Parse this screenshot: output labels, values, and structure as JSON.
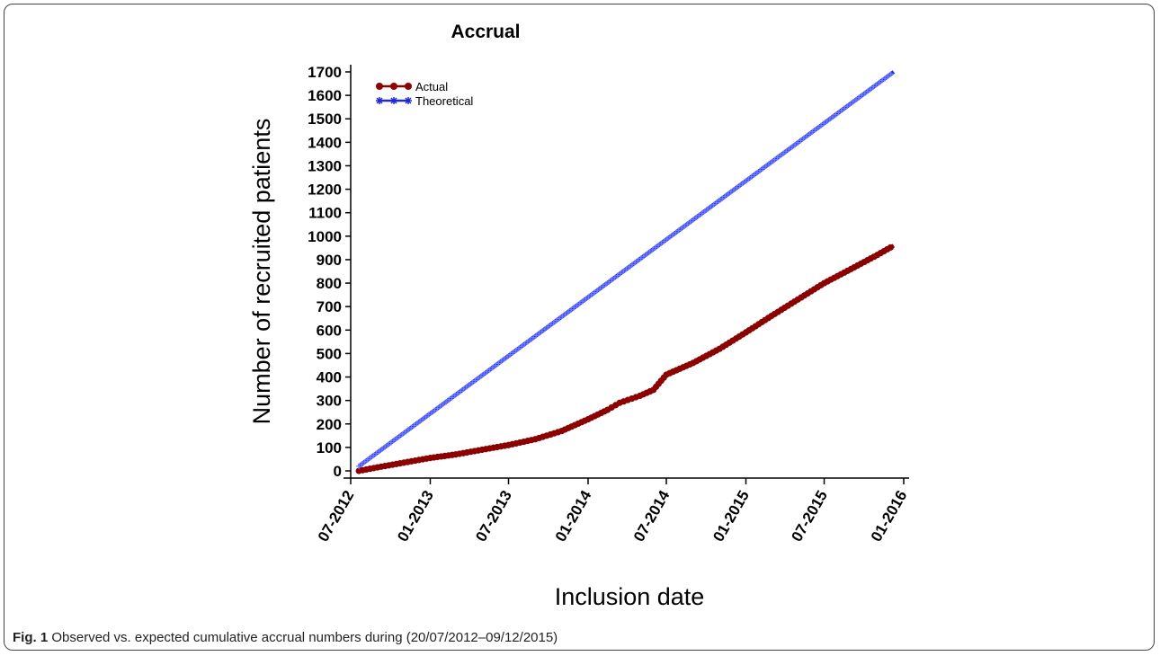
{
  "chart_data": {
    "type": "line",
    "title": "Accrual",
    "xlabel": "Inclusion date",
    "ylabel": "Number of recruited patients",
    "x_ticks": [
      "07-2012",
      "01-2013",
      "07-2013",
      "01-2014",
      "07-2014",
      "01-2015",
      "07-2015",
      "01-2016"
    ],
    "x_range": [
      "2012-07-01",
      "2016-01-01"
    ],
    "y_ticks": [
      0,
      100,
      200,
      300,
      400,
      500,
      600,
      700,
      800,
      900,
      1000,
      1100,
      1200,
      1300,
      1400,
      1500,
      1600,
      1700
    ],
    "ylim": [
      0,
      1700
    ],
    "legend_position": "top-left",
    "grid": false,
    "series": [
      {
        "name": "Actual",
        "color": "#8b0000",
        "marker": "circle",
        "x": [
          "2012-07-20",
          "2012-09-01",
          "2012-11-01",
          "2013-01-01",
          "2013-03-01",
          "2013-05-01",
          "2013-07-01",
          "2013-09-01",
          "2013-11-01",
          "2014-01-01",
          "2014-02-15",
          "2014-03-15",
          "2014-05-01",
          "2014-06-01",
          "2014-07-01",
          "2014-09-01",
          "2014-11-01",
          "2015-01-01",
          "2015-03-01",
          "2015-05-01",
          "2015-07-01",
          "2015-09-01",
          "2015-11-01",
          "2015-12-09"
        ],
        "values": [
          0,
          15,
          35,
          55,
          70,
          90,
          110,
          135,
          170,
          220,
          260,
          290,
          320,
          345,
          410,
          460,
          520,
          590,
          660,
          730,
          800,
          860,
          920,
          960
        ]
      },
      {
        "name": "Theoretical",
        "color": "#1f2bd6",
        "marker": "star",
        "x": [
          "2012-07-20",
          "2015-12-09"
        ],
        "values": [
          20,
          1700
        ]
      }
    ]
  },
  "caption": {
    "label": "Fig. 1",
    "text": "Observed vs. expected cumulative accrual numbers during (20/07/2012–09/12/2015)"
  }
}
